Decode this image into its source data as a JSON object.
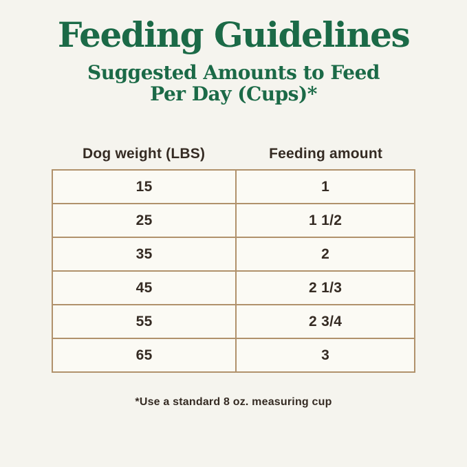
{
  "page": {
    "background_color": "#f5f4ee",
    "accent_green": "#1b6a47",
    "text_brown": "#352b23",
    "border_tan": "#b0916b",
    "cell_fill": "#fbfaf4"
  },
  "title": "Feeding Guidelines",
  "subtitle": {
    "line1": "Suggested Amounts to Feed",
    "line2": "Per Day (Cups)*"
  },
  "table": {
    "columns": {
      "weight": "Dog weight (LBS)",
      "amount": "Feeding amount"
    },
    "rows": [
      {
        "weight": "15",
        "amount": "1"
      },
      {
        "weight": "25",
        "amount": "1 1/2"
      },
      {
        "weight": "35",
        "amount": "2"
      },
      {
        "weight": "45",
        "amount": "2 1/3"
      },
      {
        "weight": "55",
        "amount": "2 3/4"
      },
      {
        "weight": "65",
        "amount": "3"
      }
    ]
  },
  "footnote": "*Use a standard 8 oz. measuring cup",
  "chart_data": {
    "type": "table",
    "title": "Feeding Guidelines",
    "subtitle": "Suggested Amounts to Feed Per Day (Cups)*",
    "columns": [
      "Dog weight (LBS)",
      "Feeding amount"
    ],
    "rows": [
      [
        15,
        "1"
      ],
      [
        25,
        "1 1/2"
      ],
      [
        35,
        "2"
      ],
      [
        45,
        "2 1/3"
      ],
      [
        55,
        "2 3/4"
      ],
      [
        65,
        "3"
      ]
    ],
    "x_numeric": [
      15,
      25,
      35,
      45,
      55,
      65
    ],
    "y_numeric_cups": [
      1,
      1.5,
      2,
      2.333,
      2.75,
      3
    ],
    "footnote": "*Use a standard 8 oz. measuring cup",
    "layout": "two-column bordered table, headers outside border, all values centered"
  }
}
